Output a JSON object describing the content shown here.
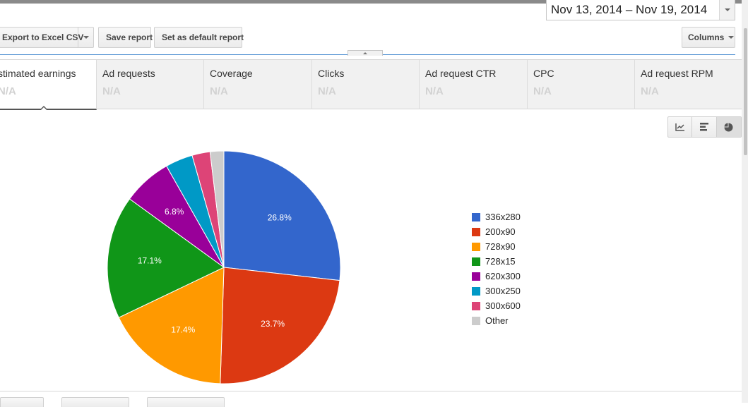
{
  "date_range": {
    "label": "Nov 13, 2014 – Nov 19, 2014"
  },
  "toolbar": {
    "export_label": "Export to Excel CSV",
    "save_label": "Save report",
    "default_label": "Set as default report",
    "columns_label": "Columns"
  },
  "metrics": [
    {
      "label": "stimated earnings",
      "value": "N/A"
    },
    {
      "label": "Ad requests",
      "value": "N/A"
    },
    {
      "label": "Coverage",
      "value": "N/A"
    },
    {
      "label": "Clicks",
      "value": "N/A"
    },
    {
      "label": "Ad request CTR",
      "value": "N/A"
    },
    {
      "label": "CPC",
      "value": "N/A"
    },
    {
      "label": "Ad request RPM",
      "value": "N/A"
    }
  ],
  "view_toggle": {
    "icons": [
      "line-chart-icon",
      "bar-chart-icon",
      "pie-chart-icon"
    ],
    "selected": "pie"
  },
  "chart_data": {
    "type": "pie",
    "title": "",
    "categories": [
      "336x280",
      "200x90",
      "728x90",
      "728x15",
      "620x300",
      "300x250",
      "300x600",
      "Other"
    ],
    "values": [
      26.8,
      23.7,
      17.4,
      17.1,
      6.8,
      3.8,
      2.5,
      1.9
    ],
    "data_labels": [
      "26.8%",
      "23.7%",
      "17.4%",
      "17.1%",
      "6.8%",
      "",
      "",
      ""
    ],
    "colors": [
      "#3366cc",
      "#dc3912",
      "#ff9900",
      "#109618",
      "#990099",
      "#0099c6",
      "#dd4477",
      "#cccccc"
    ],
    "legend_position": "right"
  }
}
